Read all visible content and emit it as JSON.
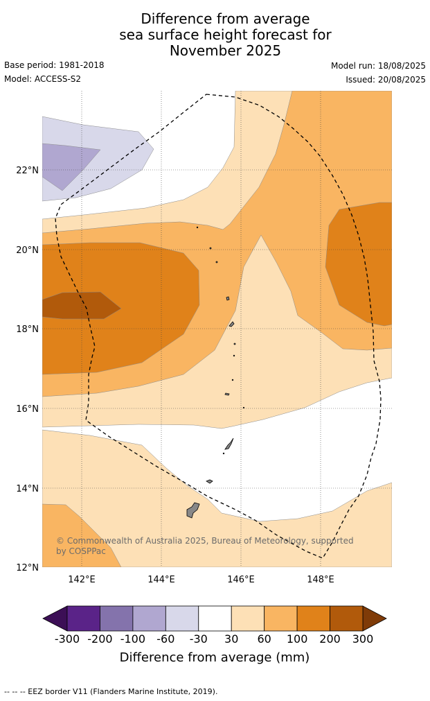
{
  "title": {
    "line1": "Difference from average",
    "line2": "sea surface height forecast for",
    "line3": "November 2025"
  },
  "meta": {
    "base_period": "Base period: 1981-2018",
    "model": "Model: ACCESS-S2",
    "model_run": "Model run: 18/08/2025",
    "issued": "Issued: 20/08/2025"
  },
  "map": {
    "y_ticks": [
      "22°N",
      "20°N",
      "18°N",
      "16°N",
      "14°N",
      "12°N"
    ],
    "x_ticks": [
      "142°E",
      "144°E",
      "146°E",
      "148°E"
    ],
    "lat_range": [
      12,
      24
    ],
    "lon_range": [
      141,
      149.8
    ],
    "copyright_line1": "© Commonwealth of Australia 2025, Bureau of Meteorology, supported",
    "copyright_line2": "by COSPPac"
  },
  "colorbar": {
    "title": "Difference from average (mm)",
    "tick_labels": [
      "-300",
      "-200",
      "-100",
      "-60",
      "-30",
      "30",
      "60",
      "100",
      "200",
      "300"
    ],
    "colors": [
      "#5a2388",
      "#8473ac",
      "#b0a7d0",
      "#d8d8ea",
      "#ffffff",
      "#fde0b6",
      "#f9b562",
      "#e0821a",
      "#b15a0b"
    ],
    "under_color": "#3c0f56",
    "over_color": "#7f3b08"
  },
  "legend_note": "--  --  -- EEZ border V11 (Flanders Marine Institute, 2019)."
}
